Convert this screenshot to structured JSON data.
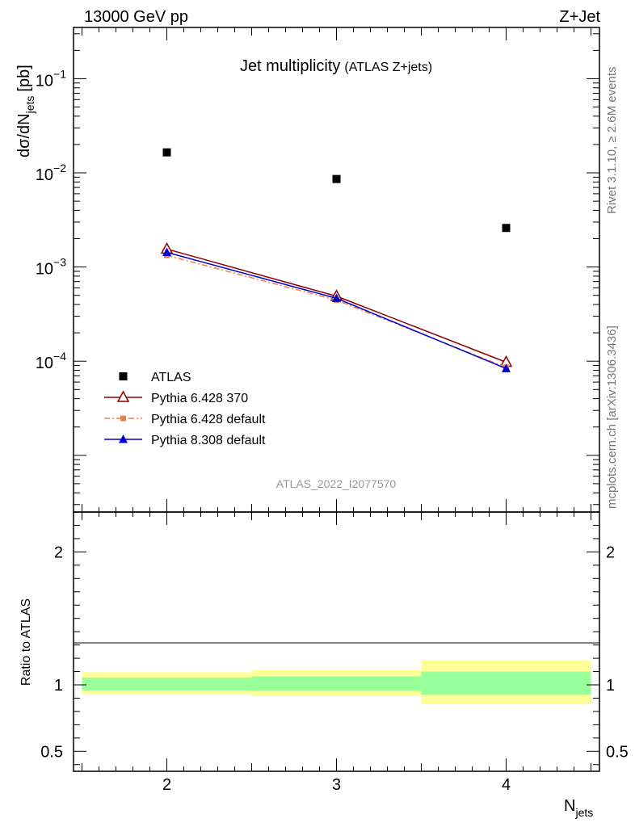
{
  "header": {
    "left": "13000 GeV pp",
    "right": "Z+Jet"
  },
  "side_labels": {
    "rivet": "Rivet 3.1.10, ≥ 2.6M events",
    "mcplots": "mcplots.cern.ch [arXiv:1306.3436]"
  },
  "chart_data": {
    "type": "scatter",
    "title": "Jet multiplicity",
    "subtitle": "(ATLAS Z+jets)",
    "analysis_id": "ATLAS_2022_I2077570",
    "xlabel_main": "N",
    "xlabel_sub": "jets",
    "ylabel_main": "dσ/dN",
    "ylabel_sub": "jets",
    "ylabel_unit": "[pb]",
    "yscale": "log",
    "xlim": [
      1.45,
      4.55
    ],
    "ylim": [
      2.5e-06,
      0.35
    ],
    "x_ticks": [
      "2",
      "3",
      "4"
    ],
    "y_tick_labels": [
      {
        "base": "10",
        "exp": "−1",
        "value": 0.1
      },
      {
        "base": "10",
        "exp": "−2",
        "value": 0.01
      },
      {
        "base": "10",
        "exp": "−3",
        "value": 0.001
      },
      {
        "base": "10",
        "exp": "−4",
        "value": 0.0001
      }
    ],
    "legend_position": "lower-left",
    "series": [
      {
        "name": "ATLAS",
        "color": "#000000",
        "marker": "square",
        "line": "none",
        "x": [
          2,
          3,
          4
        ],
        "y": [
          0.0165,
          0.0086,
          0.0026
        ]
      },
      {
        "name": "Pythia 6.428 370",
        "color": "#8b0000",
        "marker": "open-triangle",
        "line": "solid",
        "x": [
          2,
          3,
          4
        ],
        "y": [
          0.00155,
          0.00049,
          9.75e-05
        ]
      },
      {
        "name": "Pythia 6.428 default",
        "color": "#f08040",
        "marker": "small-square",
        "line": "dashdot",
        "x": [
          2,
          3,
          4
        ],
        "y": [
          0.00133,
          0.000445,
          8.6e-05
        ]
      },
      {
        "name": "Pythia 8.308 default",
        "color": "#0000cc",
        "marker": "filled-triangle",
        "line": "solid",
        "x": [
          2,
          3,
          4
        ],
        "y": [
          0.00143,
          0.000465,
          8.35e-05
        ]
      }
    ],
    "ratio": {
      "ylabel": "Ratio to ATLAS",
      "ylim": [
        0.35,
        2.3
      ],
      "y_ticks": [
        {
          "label": "0.5",
          "value": 0.5
        },
        {
          "label": "1",
          "value": 1
        },
        {
          "label": "2",
          "value": 2
        }
      ],
      "bands": [
        {
          "x_range": [
            1.5,
            2.5
          ],
          "yellow": [
            0.928,
            1.095
          ],
          "green": [
            0.958,
            1.055
          ]
        },
        {
          "x_range": [
            2.5,
            3.5
          ],
          "yellow": [
            0.915,
            1.11
          ],
          "green": [
            0.955,
            1.063
          ]
        },
        {
          "x_range": [
            3.5,
            4.5
          ],
          "yellow": [
            0.855,
            1.185
          ],
          "green": [
            0.925,
            1.1
          ]
        }
      ],
      "colors": {
        "yellow": "#ffff99",
        "green": "#99ff99"
      }
    }
  }
}
